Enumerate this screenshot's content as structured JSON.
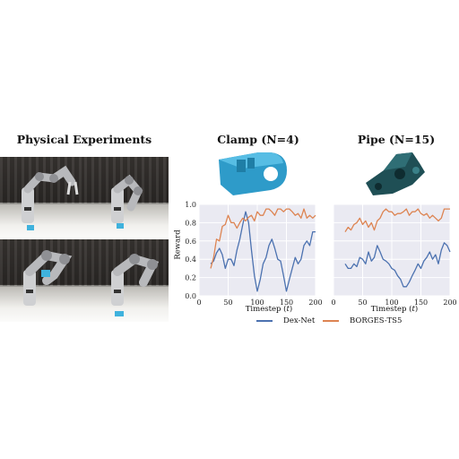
{
  "figure": {
    "physical_title": "Physical Experiments",
    "clamp_title": "Clamp (N=4)",
    "pipe_title": "Pipe (N=15)",
    "legend": [
      {
        "label": "Dex-Net",
        "color": "#4c72b0"
      },
      {
        "label": "BORGES-TS5",
        "color": "#dd8452"
      }
    ],
    "object_colors": {
      "clamp": "#2e9bc9",
      "pipe": "#1f4f55"
    }
  },
  "chart_data": [
    {
      "type": "line",
      "title": "Clamp (N=4)",
      "xlabel": "Timestep (t)",
      "ylabel": "Reward",
      "xlim": [
        0,
        200
      ],
      "ylim": [
        0,
        1.0
      ],
      "xticks": [
        0,
        50,
        100,
        150,
        200
      ],
      "yticks": [
        0.0,
        0.2,
        0.4,
        0.6,
        0.8,
        1.0
      ],
      "xtick_labels": [
        "0",
        "50",
        "100",
        "150",
        "200"
      ],
      "ytick_labels": [
        "0.0",
        "0.2",
        "0.4",
        "0.6",
        "0.8",
        "1.0"
      ],
      "grid": true,
      "series": [
        {
          "name": "Dex-Net",
          "x": [
            20,
            25,
            30,
            35,
            40,
            45,
            50,
            55,
            60,
            65,
            70,
            75,
            80,
            85,
            90,
            95,
            100,
            105,
            110,
            115,
            120,
            125,
            130,
            135,
            140,
            145,
            150,
            155,
            160,
            165,
            170,
            175,
            180,
            185,
            190,
            195,
            200
          ],
          "y": [
            0.35,
            0.38,
            0.47,
            0.52,
            0.45,
            0.3,
            0.4,
            0.4,
            0.33,
            0.5,
            0.62,
            0.78,
            0.92,
            0.8,
            0.5,
            0.22,
            0.05,
            0.18,
            0.35,
            0.42,
            0.55,
            0.62,
            0.52,
            0.4,
            0.38,
            0.22,
            0.05,
            0.18,
            0.3,
            0.42,
            0.35,
            0.4,
            0.55,
            0.6,
            0.55,
            0.7,
            0.7
          ]
        },
        {
          "name": "BORGES-TS5",
          "x": [
            20,
            25,
            30,
            35,
            40,
            45,
            50,
            55,
            60,
            65,
            70,
            75,
            80,
            85,
            90,
            95,
            100,
            105,
            110,
            115,
            120,
            125,
            130,
            135,
            140,
            145,
            150,
            155,
            160,
            165,
            170,
            175,
            180,
            185,
            190,
            195,
            200
          ],
          "y": [
            0.3,
            0.42,
            0.62,
            0.6,
            0.76,
            0.78,
            0.88,
            0.8,
            0.8,
            0.74,
            0.8,
            0.85,
            0.82,
            0.86,
            0.88,
            0.82,
            0.92,
            0.88,
            0.88,
            0.95,
            0.95,
            0.92,
            0.88,
            0.95,
            0.95,
            0.92,
            0.95,
            0.95,
            0.92,
            0.88,
            0.9,
            0.85,
            0.95,
            0.85,
            0.88,
            0.85,
            0.88
          ]
        }
      ]
    },
    {
      "type": "line",
      "title": "Pipe (N=15)",
      "xlabel": "Timestep (t)",
      "ylabel": "",
      "xlim": [
        0,
        200
      ],
      "ylim": [
        0,
        1.0
      ],
      "xticks": [
        0,
        50,
        100,
        150,
        200
      ],
      "xtick_labels": [
        "0",
        "50",
        "100",
        "150",
        "200"
      ],
      "grid": true,
      "series": [
        {
          "name": "Dex-Net",
          "x": [
            20,
            25,
            30,
            35,
            40,
            45,
            50,
            55,
            60,
            65,
            70,
            75,
            80,
            85,
            90,
            95,
            100,
            105,
            110,
            115,
            120,
            125,
            130,
            135,
            140,
            145,
            150,
            155,
            160,
            165,
            170,
            175,
            180,
            185,
            190,
            195,
            200
          ],
          "y": [
            0.35,
            0.3,
            0.3,
            0.35,
            0.32,
            0.42,
            0.4,
            0.35,
            0.48,
            0.38,
            0.42,
            0.55,
            0.48,
            0.4,
            0.38,
            0.35,
            0.3,
            0.28,
            0.22,
            0.18,
            0.1,
            0.1,
            0.15,
            0.22,
            0.28,
            0.35,
            0.3,
            0.38,
            0.42,
            0.48,
            0.4,
            0.45,
            0.35,
            0.5,
            0.58,
            0.55,
            0.48
          ]
        },
        {
          "name": "BORGES-TS5",
          "x": [
            20,
            25,
            30,
            35,
            40,
            45,
            50,
            55,
            60,
            65,
            70,
            75,
            80,
            85,
            90,
            95,
            100,
            105,
            110,
            115,
            120,
            125,
            130,
            135,
            140,
            145,
            150,
            155,
            160,
            165,
            170,
            175,
            180,
            185,
            190,
            195,
            200
          ],
          "y": [
            0.7,
            0.75,
            0.72,
            0.78,
            0.8,
            0.85,
            0.78,
            0.82,
            0.75,
            0.8,
            0.72,
            0.82,
            0.85,
            0.92,
            0.95,
            0.92,
            0.92,
            0.88,
            0.9,
            0.9,
            0.92,
            0.95,
            0.88,
            0.92,
            0.92,
            0.95,
            0.9,
            0.88,
            0.9,
            0.85,
            0.88,
            0.85,
            0.82,
            0.85,
            0.95,
            0.95,
            0.95
          ]
        }
      ]
    }
  ]
}
